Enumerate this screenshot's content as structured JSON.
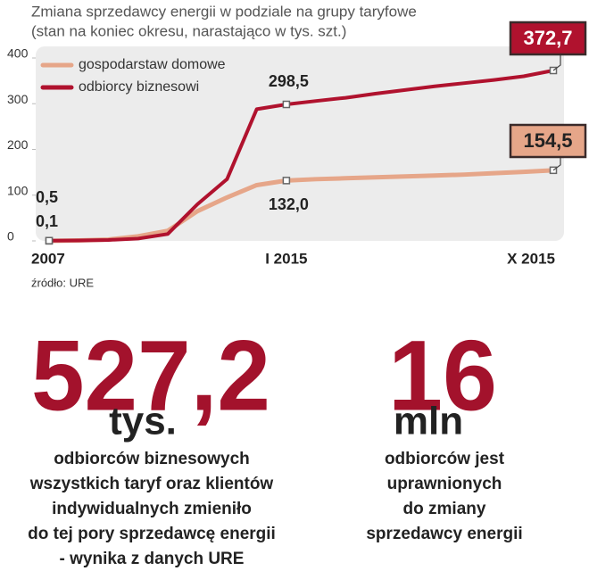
{
  "chart_data": {
    "type": "line",
    "title": "Zmiana sprzedawcy energii w podziale na grupy taryfowe",
    "subtitle": "(stan na koniec okresu, narastająco w tys. szt.)",
    "source": "źródło: URE",
    "categories": [
      "2007",
      null,
      null,
      null,
      null,
      null,
      null,
      null,
      "I 2015",
      null,
      null,
      null,
      null,
      null,
      null,
      null,
      null,
      "X 2015"
    ],
    "series": [
      {
        "name": "gospodarstaw domowe",
        "color": "#e6a689",
        "values": [
          0.1,
          1,
          3,
          10,
          22,
          65,
          95,
          122,
          132.0,
          135,
          137,
          139,
          141,
          143,
          145,
          148,
          151,
          154.5
        ],
        "value_labels": [
          "0,1",
          null,
          null,
          null,
          null,
          null,
          null,
          null,
          "132,0",
          null,
          null,
          null,
          null,
          null,
          null,
          null,
          null,
          "154,5"
        ]
      },
      {
        "name": "odbiorcy biznesowi",
        "color": "#b0122e",
        "values": [
          0.5,
          1,
          2,
          5,
          15,
          80,
          135,
          288,
          298.5,
          306,
          313,
          322,
          330,
          338,
          345,
          352,
          360,
          372.7
        ],
        "value_labels": [
          "0,5",
          null,
          null,
          null,
          null,
          null,
          null,
          null,
          "298,5",
          null,
          null,
          null,
          null,
          null,
          null,
          null,
          null,
          "372,7"
        ]
      }
    ],
    "ylim": [
      0,
      400
    ],
    "yticks": [
      0,
      100,
      200,
      300,
      400
    ],
    "legend": "top-left"
  },
  "stats": [
    {
      "number": "527,2",
      "unit": "tys.",
      "lines": [
        "odbiorców biznesowych",
        "wszystkich taryf oraz klientów",
        "indywidualnych zmieniło",
        "do tej pory sprzedawcę energii",
        "- wynika z danych URE"
      ]
    },
    {
      "number": "16",
      "unit": "mln",
      "lines": [
        "odbiorców jest",
        "uprawnionych",
        "do zmiany",
        "sprzedawcy energii"
      ]
    }
  ]
}
